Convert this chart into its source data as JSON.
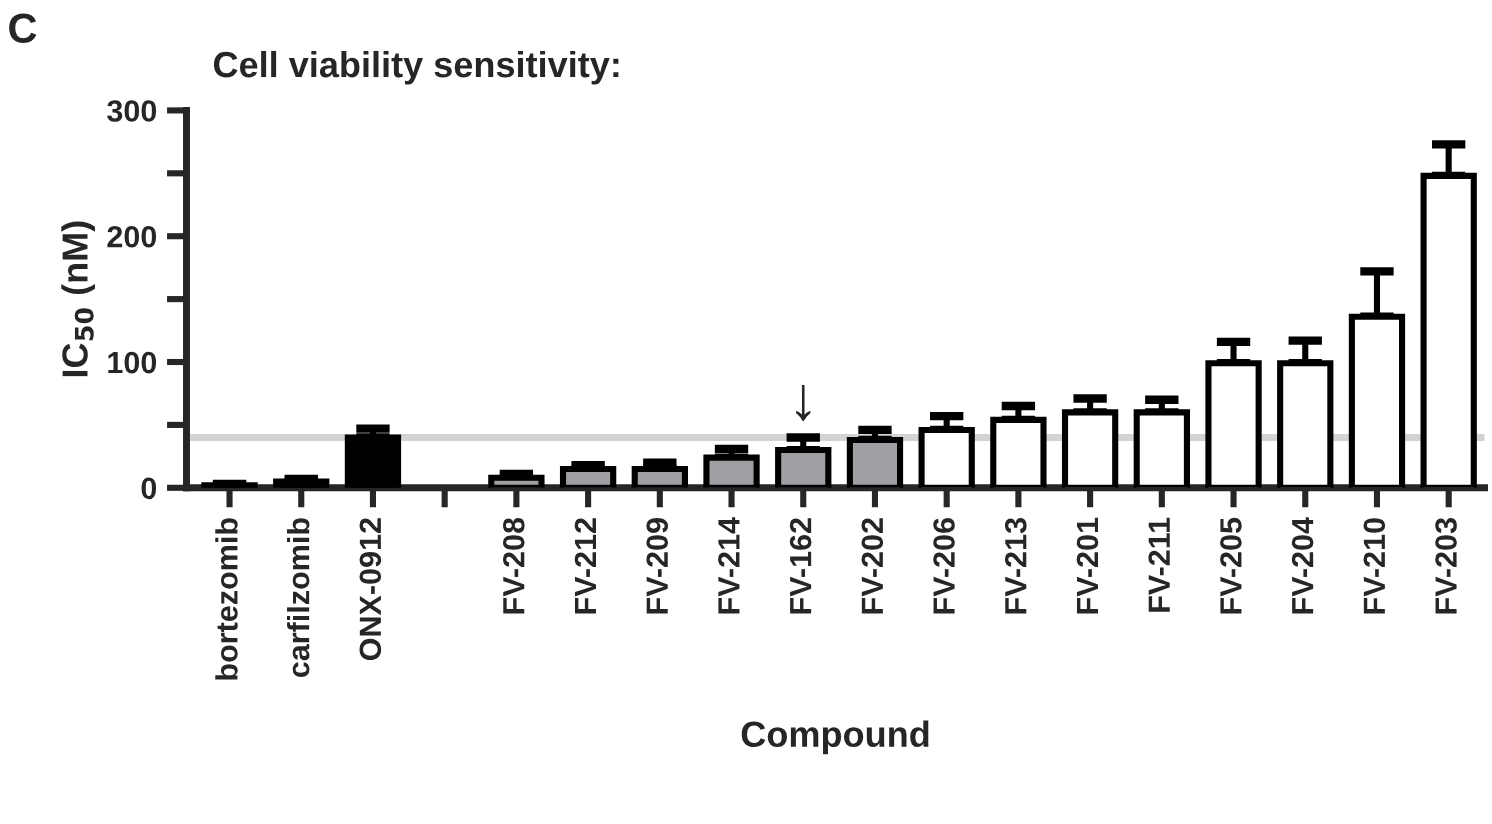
{
  "chart_data": {
    "type": "bar",
    "title": "Cell viability sensitivity:",
    "xlabel": "Compound",
    "ylabel": "IC$_{50}$ (nM)",
    "categories": [
      "bortezomib",
      "carfilzomib",
      "ONX-0912",
      null,
      "FV-208",
      "FV-212",
      "FV-209",
      "FV-214",
      "FV-162",
      "FV-202",
      "FV-206",
      "FV-213",
      "FV-201",
      "FV-211",
      "FV-205",
      "FV-204",
      "FV-210",
      "FV-203"
    ],
    "values": [
      2,
      5,
      40,
      null,
      8,
      15,
      15,
      24,
      30,
      38,
      46,
      54,
      60,
      60,
      99,
      99,
      136,
      248
    ],
    "errors": [
      [
        2,
        3
      ],
      [
        5,
        7
      ],
      [
        40,
        47
      ],
      null,
      [
        8,
        11
      ],
      [
        15,
        18
      ],
      [
        15,
        20
      ],
      [
        24,
        31
      ],
      [
        30,
        40
      ],
      [
        38,
        46
      ],
      [
        46,
        57
      ],
      [
        54,
        65
      ],
      [
        60,
        71
      ],
      [
        60,
        70
      ],
      [
        99,
        116
      ],
      [
        99,
        117
      ],
      [
        136,
        172
      ],
      [
        248,
        273
      ]
    ],
    "colors": [
      "#000000",
      "#000000",
      "#000000",
      "#ffffff",
      "#a0a0a4",
      "#a0a0a4",
      "#a0a0a4",
      "#a0a0a4",
      "#a0a0a4",
      "#a0a0a4",
      "#ffffff",
      "#ffffff",
      "#ffffff",
      "#ffffff",
      "#ffffff",
      "#ffffff",
      "#ffffff",
      "#ffffff"
    ],
    "ylim": [
      0,
      300
    ],
    "yticks": [
      0,
      {
        "value": 50,
        "label": null
      },
      100,
      {
        "value": 150,
        "label": null
      },
      200,
      {
        "value": 250,
        "label": null
      },
      300
    ],
    "ref_lines": [
      {
        "axis": "y",
        "value": 40,
        "label": null,
        "color": "#d3d3d3"
      }
    ],
    "annotations": [
      "C",
      {
        "text": "↓",
        "x": "FV-162",
        "y": 40
      }
    ],
    "grid": false,
    "legend": false
  }
}
